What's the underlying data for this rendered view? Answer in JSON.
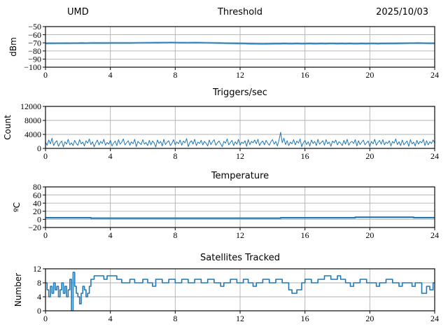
{
  "page": {
    "background": "#ffffff",
    "grid_color": "#b0b0b0",
    "spine_color": "#1a1a1a",
    "line_color": "#1f77b4"
  },
  "chart_data": [
    {
      "type": "line",
      "left_title": "UMD",
      "title": "Threshold",
      "right_title": "2025/10/03",
      "ylabel": "dBm",
      "xlim": [
        0,
        24
      ],
      "ylim": [
        -100,
        -50
      ],
      "xticks": [
        0,
        4,
        8,
        12,
        16,
        20,
        24
      ],
      "xtick_labels": [
        "0",
        "4",
        "8",
        "12",
        "16",
        "20",
        "24"
      ],
      "yticks": [
        -50,
        -60,
        -70,
        -80,
        -90,
        -100
      ],
      "ytick_labels": [
        "−50",
        "−60",
        "−70",
        "−80",
        "−90",
        "−100"
      ],
      "grid": true,
      "x0": 0,
      "dx": 0.25,
      "y": [
        -70.7,
        -70.6,
        -70.6,
        -70.5,
        -70.5,
        -70.4,
        -70.5,
        -70.4,
        -70.4,
        -70.3,
        -70.4,
        -70.3,
        -70.2,
        -70.3,
        -70.2,
        -70.3,
        -70.2,
        -70.1,
        -70.2,
        -70.2,
        -70.1,
        -70.2,
        -70.1,
        -70.0,
        -70.0,
        -69.9,
        -69.9,
        -69.8,
        -69.8,
        -69.7,
        -69.7,
        -69.6,
        -69.7,
        -69.8,
        -69.8,
        -69.9,
        -69.8,
        -69.7,
        -69.8,
        -69.9,
        -70.0,
        -70.1,
        -70.2,
        -70.3,
        -70.4,
        -70.5,
        -70.6,
        -70.7,
        -70.8,
        -70.9,
        -71.0,
        -71.1,
        -71.2,
        -71.3,
        -71.3,
        -71.2,
        -71.1,
        -71.0,
        -71.0,
        -70.9,
        -71.0,
        -71.0,
        -70.9,
        -71.0,
        -71.0,
        -70.9,
        -71.0,
        -71.0,
        -70.9,
        -71.0,
        -70.9,
        -70.9,
        -71.0,
        -70.9,
        -71.0,
        -70.9,
        -71.0,
        -71.0,
        -70.9,
        -71.0,
        -70.9,
        -70.9,
        -71.0,
        -70.9,
        -70.9,
        -70.8,
        -70.8,
        -70.7,
        -70.6,
        -70.5,
        -70.4,
        -70.4,
        -70.3,
        -70.4,
        -70.5,
        -70.6,
        -70.6
      ]
    },
    {
      "type": "line",
      "title": "Triggers/sec",
      "ylabel": "Count",
      "xlim": [
        0,
        24
      ],
      "ylim": [
        0,
        12000
      ],
      "xticks": [
        0,
        4,
        8,
        12,
        16,
        20,
        24
      ],
      "xtick_labels": [
        "0",
        "4",
        "8",
        "12",
        "16",
        "20",
        "24"
      ],
      "yticks": [
        12000,
        8000,
        4000,
        0
      ],
      "ytick_labels": [
        "12000",
        "8000",
        "4000",
        "0"
      ],
      "grid": true,
      "x0": 0,
      "dx": 0.1,
      "y": [
        1800,
        900,
        2400,
        1300,
        2900,
        800,
        1700,
        2200,
        600,
        1500,
        2100,
        400,
        1900,
        1200,
        2600,
        1000,
        1600,
        800,
        2300,
        1400,
        900,
        2500,
        1300,
        1800,
        700,
        2200,
        1500,
        2700,
        1100,
        1900,
        450,
        1600,
        2400,
        1000,
        2000,
        1400,
        2600,
        900,
        1700,
        1200,
        2300,
        700,
        1500,
        2100,
        800,
        2500,
        1200,
        1800,
        2700,
        1000,
        1600,
        2200,
        900,
        1900,
        1300,
        2600,
        500,
        2000,
        1500,
        1100,
        2500,
        1200,
        1700,
        800,
        2300,
        1000,
        2100,
        1600,
        400,
        2400,
        1400,
        2000,
        700,
        2600,
        1100,
        1800,
        2200,
        800,
        1500,
        2500,
        1000,
        1900,
        1300,
        2400,
        900,
        2100,
        1600,
        2800,
        500,
        1700,
        2200,
        1200,
        2600,
        800,
        1800,
        1400,
        2300,
        1000,
        2000,
        1500,
        700,
        2400,
        1100,
        1900,
        2500,
        900,
        1600,
        2100,
        1300,
        500,
        2000,
        1500,
        2700,
        1000,
        1700,
        2300,
        800,
        1900,
        1200,
        2600,
        900,
        1800,
        1400,
        2200,
        600,
        2500,
        1100,
        2000,
        1600,
        2400,
        1300,
        2600,
        800,
        1700,
        2100,
        1000,
        2300,
        1500,
        900,
        1900,
        2500,
        1200,
        2000,
        700,
        2400,
        4600,
        1600,
        2900,
        1100,
        2200,
        800,
        1800,
        1300,
        2500,
        1000,
        2100,
        1500,
        2700,
        500,
        1600,
        2300,
        1100,
        1900,
        700,
        2400,
        1400,
        2000,
        800,
        2600,
        1200,
        1700,
        2200,
        900,
        2500,
        1300,
        1800,
        600,
        2100,
        1600,
        2400,
        1000,
        1900,
        1500,
        800,
        2300,
        1200,
        2600,
        900,
        1700,
        2000,
        1400,
        2500,
        700,
        2200,
        1100,
        1800,
        2400,
        1000,
        1600,
        2100,
        500,
        2000,
        1300,
        2600,
        900,
        1700,
        2300,
        1200,
        2500,
        1000,
        1800,
        1400,
        2200,
        700,
        2000,
        1500,
        2700,
        1100,
        1900,
        800,
        2400,
        1000,
        1600,
        2100,
        600,
        2500,
        1300,
        1800,
        700,
        2300,
        1200,
        2000,
        1600,
        2600,
        800,
        2200,
        1000,
        1900,
        1400,
        2400,
        1500
      ]
    },
    {
      "type": "step",
      "title": "Temperature",
      "ylabel": "ºC",
      "xlim": [
        0,
        24
      ],
      "ylim": [
        -20,
        80
      ],
      "xticks": [
        0,
        4,
        8,
        12,
        16,
        20,
        24
      ],
      "xtick_labels": [
        "0",
        "4",
        "8",
        "12",
        "16",
        "20",
        "24"
      ],
      "yticks": [
        80,
        60,
        40,
        20,
        0,
        -20
      ],
      "ytick_labels": [
        "80",
        "60",
        "40",
        "20",
        "0",
        "−20"
      ],
      "grid": true,
      "steps": [
        [
          0,
          4
        ],
        [
          2.8,
          3
        ],
        [
          14.5,
          4
        ],
        [
          19.1,
          5.2
        ],
        [
          22.7,
          4.2
        ],
        [
          24,
          4.2
        ]
      ]
    },
    {
      "type": "step",
      "title": "Satellites Tracked",
      "ylabel": "Number",
      "xlim": [
        0,
        24
      ],
      "ylim": [
        0,
        12
      ],
      "xticks": [
        0,
        4,
        8,
        12,
        16,
        20,
        24
      ],
      "xtick_labels": [
        "0",
        "4",
        "8",
        "12",
        "16",
        "20",
        "24"
      ],
      "yticks": [
        12,
        8,
        4,
        0
      ],
      "ytick_labels": [
        "12",
        "8",
        "4",
        "0"
      ],
      "grid": true,
      "steps": [
        [
          0,
          8
        ],
        [
          0.1,
          6
        ],
        [
          0.2,
          4
        ],
        [
          0.3,
          7
        ],
        [
          0.4,
          5
        ],
        [
          0.5,
          8
        ],
        [
          0.6,
          6
        ],
        [
          0.7,
          7
        ],
        [
          0.8,
          4
        ],
        [
          0.9,
          6
        ],
        [
          1.0,
          8
        ],
        [
          1.1,
          5
        ],
        [
          1.2,
          7
        ],
        [
          1.3,
          4
        ],
        [
          1.4,
          6
        ],
        [
          1.5,
          9
        ],
        [
          1.6,
          0
        ],
        [
          1.7,
          11
        ],
        [
          1.8,
          7
        ],
        [
          1.9,
          5
        ],
        [
          2.0,
          4
        ],
        [
          2.1,
          2
        ],
        [
          2.2,
          5
        ],
        [
          2.3,
          7
        ],
        [
          2.4,
          6
        ],
        [
          2.5,
          4
        ],
        [
          2.6,
          5
        ],
        [
          2.7,
          7
        ],
        [
          2.8,
          9
        ],
        [
          3.0,
          10
        ],
        [
          3.6,
          9
        ],
        [
          3.8,
          10
        ],
        [
          4.4,
          9
        ],
        [
          4.7,
          8
        ],
        [
          5.2,
          9
        ],
        [
          5.5,
          8
        ],
        [
          6.0,
          9
        ],
        [
          6.3,
          8
        ],
        [
          6.6,
          7
        ],
        [
          6.8,
          9
        ],
        [
          7.2,
          8
        ],
        [
          7.6,
          9
        ],
        [
          8.0,
          8
        ],
        [
          8.4,
          9
        ],
        [
          8.8,
          8
        ],
        [
          9.2,
          9
        ],
        [
          9.6,
          8
        ],
        [
          10.0,
          9
        ],
        [
          10.4,
          8
        ],
        [
          10.8,
          7
        ],
        [
          11.0,
          8
        ],
        [
          11.4,
          9
        ],
        [
          11.8,
          8
        ],
        [
          12.2,
          9
        ],
        [
          12.5,
          8
        ],
        [
          12.8,
          7
        ],
        [
          13.0,
          8
        ],
        [
          13.4,
          9
        ],
        [
          13.8,
          8
        ],
        [
          14.2,
          9
        ],
        [
          14.6,
          8
        ],
        [
          15.0,
          6
        ],
        [
          15.2,
          5
        ],
        [
          15.5,
          6
        ],
        [
          15.8,
          8
        ],
        [
          16.0,
          9
        ],
        [
          16.4,
          8
        ],
        [
          16.8,
          9
        ],
        [
          17.2,
          10
        ],
        [
          17.6,
          9
        ],
        [
          18.0,
          10
        ],
        [
          18.2,
          9
        ],
        [
          18.5,
          8
        ],
        [
          18.8,
          7
        ],
        [
          19.0,
          8
        ],
        [
          19.4,
          9
        ],
        [
          19.8,
          8
        ],
        [
          20.4,
          7
        ],
        [
          20.6,
          8
        ],
        [
          21.0,
          9
        ],
        [
          21.4,
          8
        ],
        [
          21.8,
          7
        ],
        [
          22.0,
          8
        ],
        [
          22.6,
          7
        ],
        [
          22.8,
          8
        ],
        [
          23.2,
          5
        ],
        [
          23.5,
          7
        ],
        [
          23.7,
          6
        ],
        [
          23.9,
          8
        ],
        [
          24,
          8
        ]
      ]
    }
  ]
}
